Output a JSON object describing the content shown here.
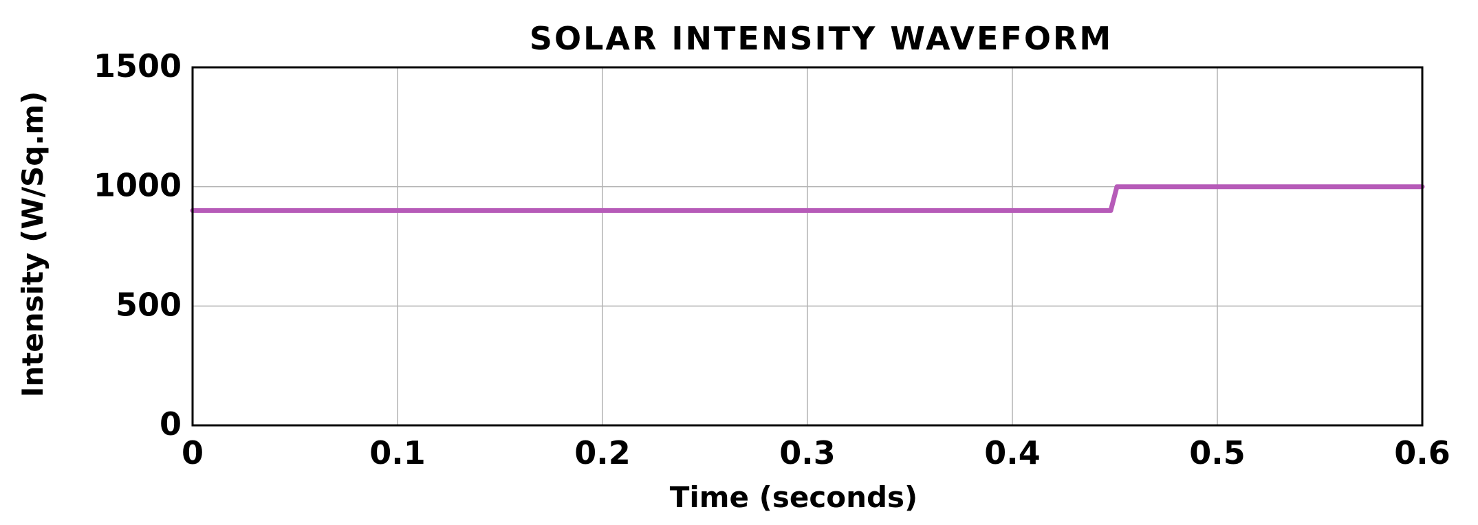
{
  "chart_data": {
    "type": "line",
    "title": "SOLAR INTENSITY WAVEFORM",
    "xlabel": "Time (seconds)",
    "ylabel": "Intensity (W/Sq.m)",
    "xlim": [
      0,
      0.6
    ],
    "ylim": [
      0,
      1500
    ],
    "xticks": [
      "0",
      "0.1",
      "0.2",
      "0.3",
      "0.4",
      "0.5",
      "0.6"
    ],
    "yticks": [
      "0",
      "500",
      "1000",
      "1500"
    ],
    "grid": true,
    "series": [
      {
        "color": "#b65bb8",
        "x": [
          0,
          0.448,
          0.451,
          0.6
        ],
        "y": [
          900,
          900,
          1000,
          1000
        ]
      }
    ]
  }
}
